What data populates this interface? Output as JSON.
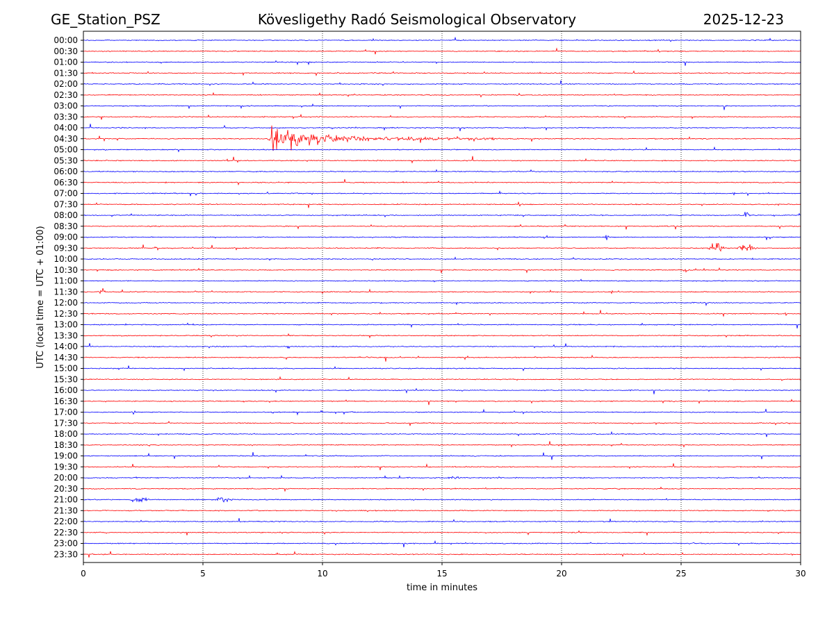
{
  "header": {
    "station": "GE_Station_PSZ",
    "title": "Kövesligethy Radó Seismological Observatory",
    "date": "2025-12-23"
  },
  "chart_data": {
    "type": "line",
    "title": "Kövesligethy Radó Seismological Observatory",
    "xlabel": "time in minutes",
    "ylabel": "UTC (local time = UTC + 01:00)",
    "xlim": [
      0,
      30
    ],
    "xticks": [
      "0",
      "5",
      "10",
      "15",
      "20",
      "25",
      "30"
    ],
    "xtick_values": [
      0,
      5,
      10,
      15,
      20,
      25,
      30
    ],
    "grid": "vertical dotted at each x tick",
    "colors": [
      "#0000ff",
      "#ff0000"
    ],
    "rows": [
      "00:00",
      "00:30",
      "01:00",
      "01:30",
      "02:00",
      "02:30",
      "03:00",
      "03:30",
      "04:00",
      "04:30",
      "05:00",
      "05:30",
      "06:00",
      "06:30",
      "07:00",
      "07:30",
      "08:00",
      "08:30",
      "09:00",
      "09:30",
      "10:00",
      "10:30",
      "11:00",
      "11:30",
      "12:00",
      "12:30",
      "13:00",
      "13:30",
      "14:00",
      "14:30",
      "15:00",
      "15:30",
      "16:00",
      "16:30",
      "17:00",
      "17:30",
      "18:00",
      "18:30",
      "19:00",
      "19:30",
      "20:00",
      "20:30",
      "21:00",
      "21:30",
      "22:00",
      "22:30",
      "23:00",
      "23:30"
    ],
    "noise_level": 1.0,
    "events": [
      {
        "row": "04:30",
        "start": 7.7,
        "duration": 9.5,
        "amplitude": 16,
        "note": "earthquake signal"
      },
      {
        "row": "08:00",
        "start": 27.6,
        "duration": 0.3,
        "amplitude": 5
      },
      {
        "row": "09:00",
        "start": 21.8,
        "duration": 0.2,
        "amplitude": 3
      },
      {
        "row": "09:30",
        "start": 26.1,
        "duration": 0.8,
        "amplitude": 5
      },
      {
        "row": "09:30",
        "start": 27.3,
        "duration": 0.9,
        "amplitude": 4
      },
      {
        "row": "09:30",
        "start": 2.95,
        "duration": 0.2,
        "amplitude": 3
      },
      {
        "row": "10:30",
        "start": 25.1,
        "duration": 0.2,
        "amplitude": 3
      },
      {
        "row": "11:30",
        "start": 0.65,
        "duration": 0.3,
        "amplitude": 5
      },
      {
        "row": "21:00",
        "start": 1.9,
        "duration": 0.9,
        "amplitude": 3
      },
      {
        "row": "21:00",
        "start": 5.5,
        "duration": 0.8,
        "amplitude": 3.5
      },
      {
        "row": "20:00",
        "start": 15.2,
        "duration": 0.6,
        "amplitude": 2
      },
      {
        "row": "07:00",
        "start": 27.1,
        "duration": 0.15,
        "amplitude": 3
      }
    ]
  }
}
